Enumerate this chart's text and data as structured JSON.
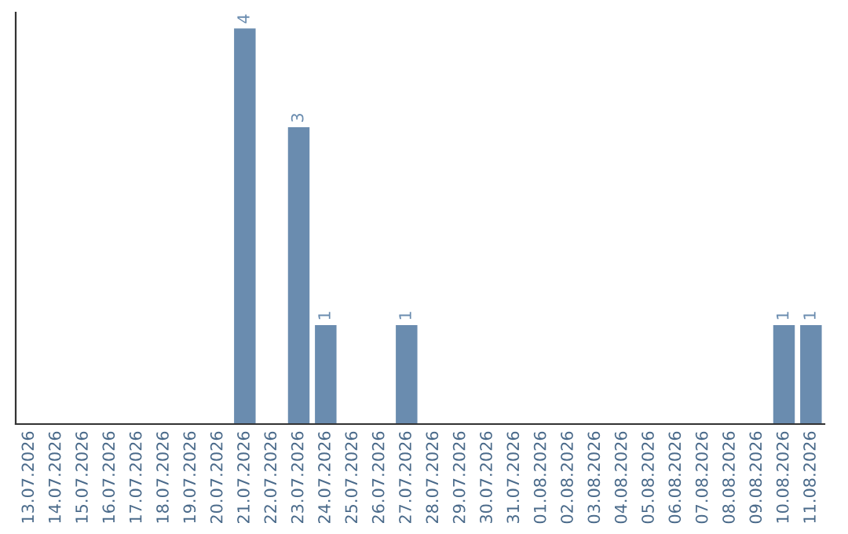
{
  "chart_data": {
    "type": "bar",
    "categories": [
      "13.07.2026",
      "14.07.2026",
      "15.07.2026",
      "16.07.2026",
      "17.07.2026",
      "18.07.2026",
      "19.07.2026",
      "20.07.2026",
      "21.07.2026",
      "22.07.2026",
      "23.07.2026",
      "24.07.2026",
      "25.07.2026",
      "26.07.2026",
      "27.07.2026",
      "28.07.2026",
      "29.07.2026",
      "30.07.2026",
      "31.07.2026",
      "01.08.2026",
      "02.08.2026",
      "03.08.2026",
      "04.08.2026",
      "05.08.2026",
      "06.08.2026",
      "07.08.2026",
      "08.08.2026",
      "09.08.2026",
      "10.08.2026",
      "11.08.2026"
    ],
    "values": [
      0,
      0,
      0,
      0,
      0,
      0,
      0,
      0,
      4,
      0,
      3,
      1,
      0,
      0,
      1,
      0,
      0,
      0,
      0,
      0,
      0,
      0,
      0,
      0,
      0,
      0,
      0,
      0,
      1,
      1
    ],
    "value_labels": [
      null,
      null,
      null,
      null,
      null,
      null,
      null,
      null,
      "4",
      null,
      "3",
      "1",
      null,
      null,
      "1",
      null,
      null,
      null,
      null,
      null,
      null,
      null,
      null,
      null,
      null,
      null,
      null,
      null,
      "1",
      "1"
    ],
    "color": "#6a8caf",
    "tick_labels": "x",
    "grid": false
  }
}
